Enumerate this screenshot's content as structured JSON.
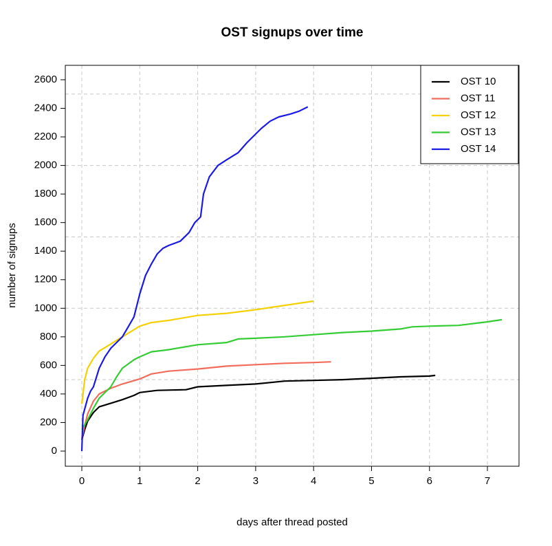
{
  "chart_data": {
    "type": "line",
    "title": "OST signups over time",
    "xlabel": "days after thread posted",
    "ylabel": "number of signups",
    "xlim": [
      -0.285,
      7.545
    ],
    "ylim": [
      -106,
      2701
    ],
    "xticks": [
      0,
      1,
      2,
      3,
      4,
      5,
      6,
      7
    ],
    "yticks": [
      0,
      200,
      400,
      600,
      800,
      1000,
      1200,
      1400,
      1600,
      1800,
      2000,
      2200,
      2400,
      2600
    ],
    "ygrid": [
      500,
      1000,
      1500,
      2000,
      2500
    ],
    "grid": true,
    "legend": "top-right",
    "series": [
      {
        "name": "OST 10",
        "color": "#000000",
        "x": [
          0,
          0.05,
          0.1,
          0.2,
          0.3,
          0.5,
          0.7,
          0.9,
          1,
          1.3,
          1.8,
          2,
          2.5,
          3,
          3.5,
          4,
          4.5,
          5,
          5.5,
          6,
          6.1
        ],
        "values": [
          80,
          150,
          210,
          270,
          310,
          335,
          360,
          390,
          410,
          425,
          430,
          450,
          460,
          470,
          490,
          495,
          500,
          510,
          520,
          525,
          530
        ]
      },
      {
        "name": "OST 11",
        "color": "#f26b5b",
        "x": [
          0,
          0.05,
          0.1,
          0.2,
          0.3,
          0.5,
          0.7,
          1,
          1.2,
          1.5,
          2,
          2.5,
          3,
          3.5,
          4,
          4.3
        ],
        "values": [
          90,
          180,
          260,
          350,
          400,
          440,
          470,
          505,
          540,
          560,
          575,
          595,
          605,
          615,
          620,
          625
        ]
      },
      {
        "name": "OST 12",
        "color": "#f5d000",
        "x": [
          0,
          0.05,
          0.1,
          0.2,
          0.3,
          0.5,
          0.7,
          0.9,
          1,
          1.2,
          1.5,
          2,
          2.5,
          3,
          3.5,
          4
        ],
        "values": [
          330,
          500,
          580,
          650,
          700,
          750,
          800,
          850,
          875,
          900,
          915,
          950,
          965,
          990,
          1020,
          1050
        ]
      },
      {
        "name": "OST 13",
        "color": "#33cc33",
        "x": [
          0,
          0.1,
          0.2,
          0.3,
          0.5,
          0.6,
          0.7,
          0.9,
          1,
          1.2,
          1.5,
          2,
          2.5,
          2.7,
          3,
          3.5,
          4,
          4.5,
          5,
          5.5,
          5.7,
          6,
          6.5,
          7,
          7.25
        ],
        "values": [
          150,
          220,
          300,
          370,
          450,
          520,
          580,
          640,
          660,
          695,
          710,
          745,
          760,
          785,
          790,
          800,
          815,
          830,
          840,
          855,
          870,
          875,
          880,
          905,
          920
        ]
      },
      {
        "name": "OST 14",
        "color": "#1a1ae6",
        "x": [
          0,
          0.02,
          0.1,
          0.15,
          0.2,
          0.3,
          0.4,
          0.5,
          0.6,
          0.7,
          0.8,
          0.9,
          1,
          1.1,
          1.2,
          1.3,
          1.4,
          1.5,
          1.7,
          1.85,
          1.95,
          2.05,
          2.1,
          2.2,
          2.35,
          2.5,
          2.7,
          2.85,
          3,
          3.1,
          3.25,
          3.4,
          3.6,
          3.75,
          3.9
        ],
        "values": [
          0,
          250,
          370,
          420,
          450,
          580,
          660,
          720,
          760,
          800,
          870,
          940,
          1100,
          1230,
          1310,
          1380,
          1420,
          1440,
          1470,
          1530,
          1600,
          1640,
          1800,
          1920,
          2000,
          2040,
          2090,
          2160,
          2220,
          2260,
          2310,
          2340,
          2360,
          2380,
          2410
        ]
      }
    ]
  }
}
